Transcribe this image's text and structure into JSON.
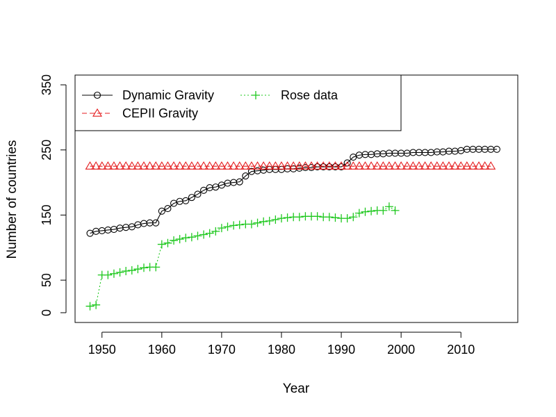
{
  "chart_data": {
    "type": "line",
    "xlabel": "Year",
    "ylabel": "Number of countries",
    "xlim": [
      1945.5,
      2019.5
    ],
    "ylim": [
      -15,
      365
    ],
    "xticks": [
      1950,
      1960,
      1970,
      1980,
      1990,
      2000,
      2010
    ],
    "yticks": [
      0,
      50,
      150,
      250,
      350
    ],
    "legend_position": "top-left",
    "series": [
      {
        "name": "Dynamic Gravity",
        "color": "#000000",
        "marker": "circle",
        "line": "solid",
        "x": [
          1948,
          1949,
          1950,
          1951,
          1952,
          1953,
          1954,
          1955,
          1956,
          1957,
          1958,
          1959,
          1960,
          1961,
          1962,
          1963,
          1964,
          1965,
          1966,
          1967,
          1968,
          1969,
          1970,
          1971,
          1972,
          1973,
          1974,
          1975,
          1976,
          1977,
          1978,
          1979,
          1980,
          1981,
          1982,
          1983,
          1984,
          1985,
          1986,
          1987,
          1988,
          1989,
          1990,
          1991,
          1992,
          1993,
          1994,
          1995,
          1996,
          1997,
          1998,
          1999,
          2000,
          2001,
          2002,
          2003,
          2004,
          2005,
          2006,
          2007,
          2008,
          2009,
          2010,
          2011,
          2012,
          2013,
          2014,
          2015,
          2016
        ],
        "y": [
          122,
          125,
          126,
          127,
          128,
          130,
          131,
          132,
          135,
          137,
          138,
          138,
          156,
          160,
          168,
          171,
          172,
          177,
          182,
          188,
          192,
          193,
          196,
          199,
          200,
          201,
          210,
          217,
          218,
          219,
          220,
          220,
          220,
          221,
          221,
          222,
          223,
          223,
          224,
          224,
          224,
          224,
          224,
          230,
          239,
          242,
          243,
          243,
          244,
          244,
          245,
          245,
          245,
          245,
          246,
          246,
          246,
          246,
          247,
          247,
          248,
          248,
          249,
          251,
          251,
          251,
          251,
          251,
          251
        ]
      },
      {
        "name": "CEPII Gravity",
        "color": "#e41a1c",
        "marker": "triangle",
        "line": "dashed",
        "x": [
          1948,
          1949,
          1950,
          1951,
          1952,
          1953,
          1954,
          1955,
          1956,
          1957,
          1958,
          1959,
          1960,
          1961,
          1962,
          1963,
          1964,
          1965,
          1966,
          1967,
          1968,
          1969,
          1970,
          1971,
          1972,
          1973,
          1974,
          1975,
          1976,
          1977,
          1978,
          1979,
          1980,
          1981,
          1982,
          1983,
          1984,
          1985,
          1986,
          1987,
          1988,
          1989,
          1990,
          1991,
          1992,
          1993,
          1994,
          1995,
          1996,
          1997,
          1998,
          1999,
          2000,
          2001,
          2002,
          2003,
          2004,
          2005,
          2006,
          2007,
          2008,
          2009,
          2010,
          2011,
          2012,
          2013,
          2014,
          2015
        ],
        "y": [
          225,
          225,
          225,
          225,
          225,
          225,
          225,
          225,
          225,
          225,
          225,
          225,
          225,
          225,
          225,
          225,
          225,
          225,
          225,
          225,
          225,
          225,
          225,
          225,
          225,
          225,
          225,
          225,
          225,
          225,
          225,
          225,
          225,
          225,
          225,
          225,
          225,
          225,
          225,
          225,
          225,
          225,
          225,
          225,
          225,
          225,
          225,
          225,
          225,
          225,
          225,
          225,
          225,
          225,
          225,
          225,
          225,
          225,
          225,
          225,
          225,
          225,
          225,
          225,
          225,
          225,
          225,
          225
        ]
      },
      {
        "name": "Rose data",
        "color": "#1ec81e",
        "marker": "plus",
        "line": "dotted",
        "x": [
          1948,
          1949,
          1950,
          1951,
          1952,
          1953,
          1954,
          1955,
          1956,
          1957,
          1958,
          1959,
          1960,
          1961,
          1962,
          1963,
          1964,
          1965,
          1966,
          1967,
          1968,
          1969,
          1970,
          1971,
          1972,
          1973,
          1974,
          1975,
          1976,
          1977,
          1978,
          1979,
          1980,
          1981,
          1982,
          1983,
          1984,
          1985,
          1986,
          1987,
          1988,
          1989,
          1990,
          1991,
          1992,
          1993,
          1994,
          1995,
          1996,
          1997,
          1998,
          1999
        ],
        "y": [
          10,
          12,
          58,
          58,
          60,
          62,
          64,
          65,
          67,
          69,
          70,
          70,
          105,
          107,
          111,
          113,
          115,
          116,
          118,
          120,
          122,
          125,
          130,
          132,
          134,
          135,
          136,
          136,
          138,
          140,
          141,
          143,
          145,
          146,
          147,
          147,
          148,
          148,
          148,
          147,
          147,
          146,
          145,
          145,
          147,
          153,
          155,
          156,
          157,
          157,
          163,
          157
        ]
      }
    ]
  }
}
